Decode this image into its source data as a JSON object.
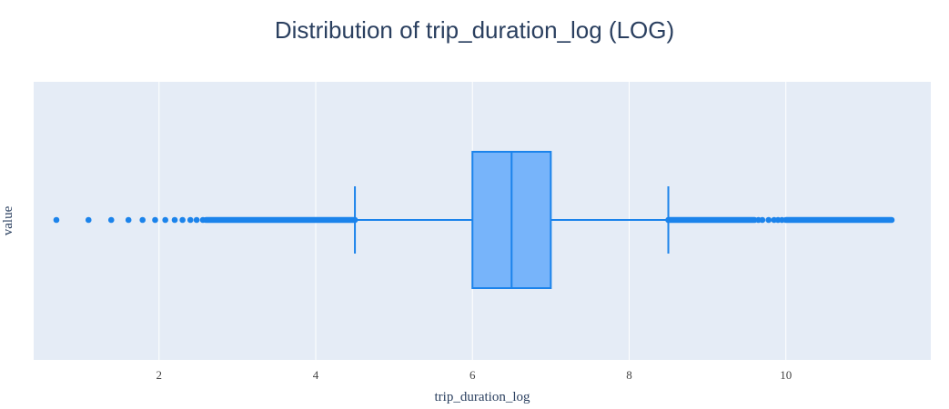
{
  "chart_data": {
    "type": "box",
    "orientation": "horizontal",
    "title": "Distribution of trip_duration_log (LOG)",
    "xlabel": "trip_duration_log",
    "ylabel": "value",
    "xlim": [
      0.4,
      11.85
    ],
    "x_ticks": [
      2,
      4,
      6,
      8,
      10
    ],
    "x_tick_labels": [
      "2",
      "4",
      "6",
      "8",
      "10"
    ],
    "grid": true,
    "legend": "none",
    "box": {
      "lower_fence": 4.5,
      "q1": 6.0,
      "median": 6.5,
      "q3": 7.0,
      "upper_fence": 8.5
    },
    "outliers_low": {
      "isolated": [
        0.69,
        1.1,
        1.39,
        1.61,
        1.79,
        1.95,
        2.08,
        2.2,
        2.3,
        2.4,
        2.48,
        2.56
      ],
      "dense_range": [
        2.6,
        4.5
      ]
    },
    "outliers_high": {
      "dense_range": [
        8.5,
        9.6
      ],
      "isolated": [
        9.65,
        9.7,
        9.78,
        9.85,
        9.9,
        9.95
      ],
      "dense_range_2": [
        10.0,
        11.35
      ]
    },
    "colors": {
      "plot_bg": "#e5ecf6",
      "grid": "#ffffff",
      "box_fill": "#77b4fa",
      "box_line": "#1b83eb",
      "marker": "#1b83eb",
      "text": "#2a3f5f",
      "tick_text": "#444444"
    }
  }
}
